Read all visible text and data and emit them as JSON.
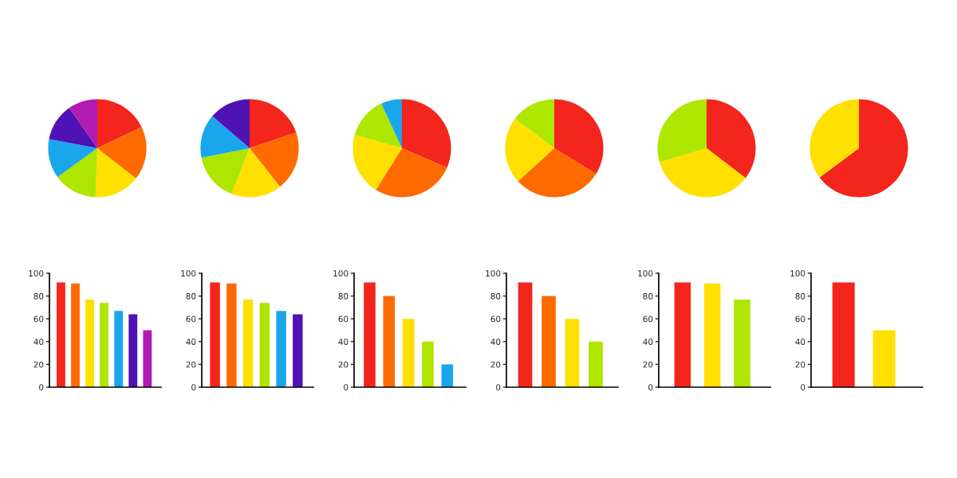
{
  "chart_data": [
    {
      "type": "pie",
      "categories": [
        null,
        null,
        null,
        null,
        null,
        null,
        null
      ],
      "values": [
        17.9,
        17.7,
        15.0,
        14.4,
        13.0,
        12.4,
        9.6
      ],
      "colors": [
        "#f4251d",
        "#ff6a00",
        "#ffe000",
        "#aee600",
        "#19a6ec",
        "#4f12b5",
        "#b31cb0"
      ]
    },
    {
      "type": "pie",
      "categories": [
        null,
        null,
        null,
        null,
        null,
        null
      ],
      "values": [
        19.8,
        19.6,
        16.6,
        15.9,
        14.4,
        13.7
      ],
      "colors": [
        "#f4251d",
        "#ff6a00",
        "#ffe000",
        "#aee600",
        "#19a6ec",
        "#4f12b5"
      ]
    },
    {
      "type": "pie",
      "categories": [
        null,
        null,
        null,
        null,
        null
      ],
      "values": [
        31.5,
        27.4,
        20.5,
        13.7,
        6.9
      ],
      "colors": [
        "#f4251d",
        "#ff6a00",
        "#ffe000",
        "#aee600",
        "#19a6ec"
      ]
    },
    {
      "type": "pie",
      "categories": [
        null,
        null,
        null,
        null
      ],
      "values": [
        33.8,
        29.4,
        22.1,
        14.7
      ],
      "colors": [
        "#f4251d",
        "#ff6a00",
        "#ffe000",
        "#aee600"
      ]
    },
    {
      "type": "pie",
      "categories": [
        null,
        null,
        null
      ],
      "values": [
        35.4,
        35.0,
        29.6
      ],
      "colors": [
        "#f4251d",
        "#ffe000",
        "#aee600"
      ]
    },
    {
      "type": "pie",
      "categories": [
        null,
        null
      ],
      "values": [
        64.8,
        35.2
      ],
      "colors": [
        "#f4251d",
        "#ffe000"
      ]
    },
    {
      "type": "bar",
      "categories": [
        null,
        null,
        null,
        null,
        null,
        null,
        null
      ],
      "values": [
        92,
        91,
        77,
        74,
        67,
        64,
        50
      ],
      "colors": [
        "#f4251d",
        "#ff6a00",
        "#ffe000",
        "#aee600",
        "#19a6ec",
        "#4f12b5",
        "#b31cb0"
      ],
      "ylim": [
        0,
        100
      ],
      "yticks": [
        0,
        20,
        40,
        60,
        80,
        100
      ],
      "tick_labels": "y"
    },
    {
      "type": "bar",
      "categories": [
        null,
        null,
        null,
        null,
        null,
        null
      ],
      "values": [
        92,
        91,
        77,
        74,
        67,
        64
      ],
      "colors": [
        "#f4251d",
        "#ff6a00",
        "#ffe000",
        "#aee600",
        "#19a6ec",
        "#4f12b5"
      ],
      "ylim": [
        0,
        100
      ],
      "yticks": [
        0,
        20,
        40,
        60,
        80,
        100
      ],
      "tick_labels": "y"
    },
    {
      "type": "bar",
      "categories": [
        null,
        null,
        null,
        null,
        null
      ],
      "values": [
        92,
        80,
        60,
        40,
        20
      ],
      "colors": [
        "#f4251d",
        "#ff6a00",
        "#ffe000",
        "#aee600",
        "#19a6ec"
      ],
      "ylim": [
        0,
        100
      ],
      "yticks": [
        0,
        20,
        40,
        60,
        80,
        100
      ],
      "tick_labels": "y"
    },
    {
      "type": "bar",
      "categories": [
        null,
        null,
        null,
        null
      ],
      "values": [
        92,
        80,
        60,
        40
      ],
      "colors": [
        "#f4251d",
        "#ff6a00",
        "#ffe000",
        "#aee600"
      ],
      "ylim": [
        0,
        100
      ],
      "yticks": [
        0,
        20,
        40,
        60,
        80,
        100
      ],
      "tick_labels": "y"
    },
    {
      "type": "bar",
      "categories": [
        null,
        null,
        null
      ],
      "values": [
        92,
        91,
        77
      ],
      "colors": [
        "#f4251d",
        "#ffe000",
        "#aee600"
      ],
      "ylim": [
        0,
        100
      ],
      "yticks": [
        0,
        20,
        40,
        60,
        80,
        100
      ],
      "tick_labels": "y"
    },
    {
      "type": "bar",
      "categories": [
        null,
        null
      ],
      "values": [
        92,
        50
      ],
      "colors": [
        "#f4251d",
        "#ffe000"
      ],
      "ylim": [
        0,
        100
      ],
      "yticks": [
        0,
        20,
        40,
        60,
        80,
        100
      ],
      "tick_labels": "y"
    }
  ]
}
